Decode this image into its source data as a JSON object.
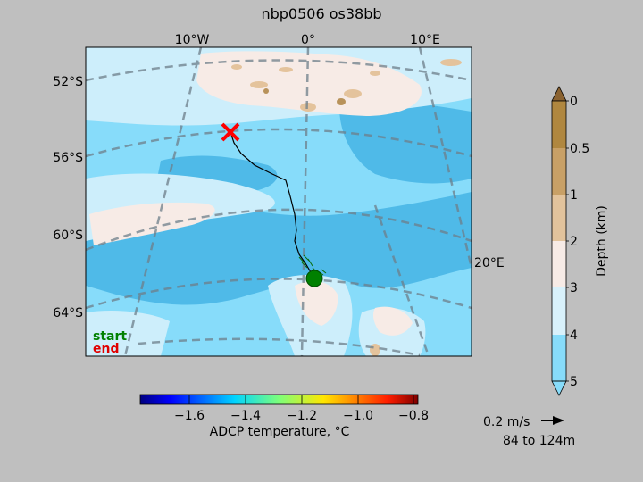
{
  "title": "nbp0506 os38bb",
  "map": {
    "lon_labels_top": [
      "10°W",
      "0°",
      "10°E"
    ],
    "lon_label_right": "20°E",
    "lat_labels_left": [
      "52°S",
      "56°S",
      "60°S",
      "64°S"
    ],
    "legend": {
      "start": "start",
      "end": "end"
    },
    "colors": {
      "ocean_deep": "#87dcfa",
      "ocean_mid": "#4fbae8",
      "ocean_light": "#cdeefb",
      "shelf": "#f7ebe6",
      "land_low": "#e4c39c",
      "land_high": "#b8925a",
      "track": "#000000",
      "start_marker": "#008000",
      "end_marker": "#ff0000",
      "graticule": "#6e7f8a"
    }
  },
  "depth_colorbar": {
    "label": "Depth (km)",
    "ticks": [
      "0",
      "0.5",
      "1",
      "2",
      "3",
      "4",
      "5"
    ],
    "colors": [
      "#b0873f",
      "#c8a066",
      "#e2c39c",
      "#f7ebe6",
      "#d8f1fb",
      "#87dcfa"
    ]
  },
  "temp_colorbar": {
    "label": "ADCP temperature, °C",
    "ticks": [
      "−1.6",
      "−1.4",
      "−1.2",
      "−1.0",
      "−0.8"
    ],
    "vmin": -1.8,
    "vmax": -0.8
  },
  "vector_key": {
    "speed": "0.2 m/s",
    "depth_range": "84 to 124m"
  }
}
